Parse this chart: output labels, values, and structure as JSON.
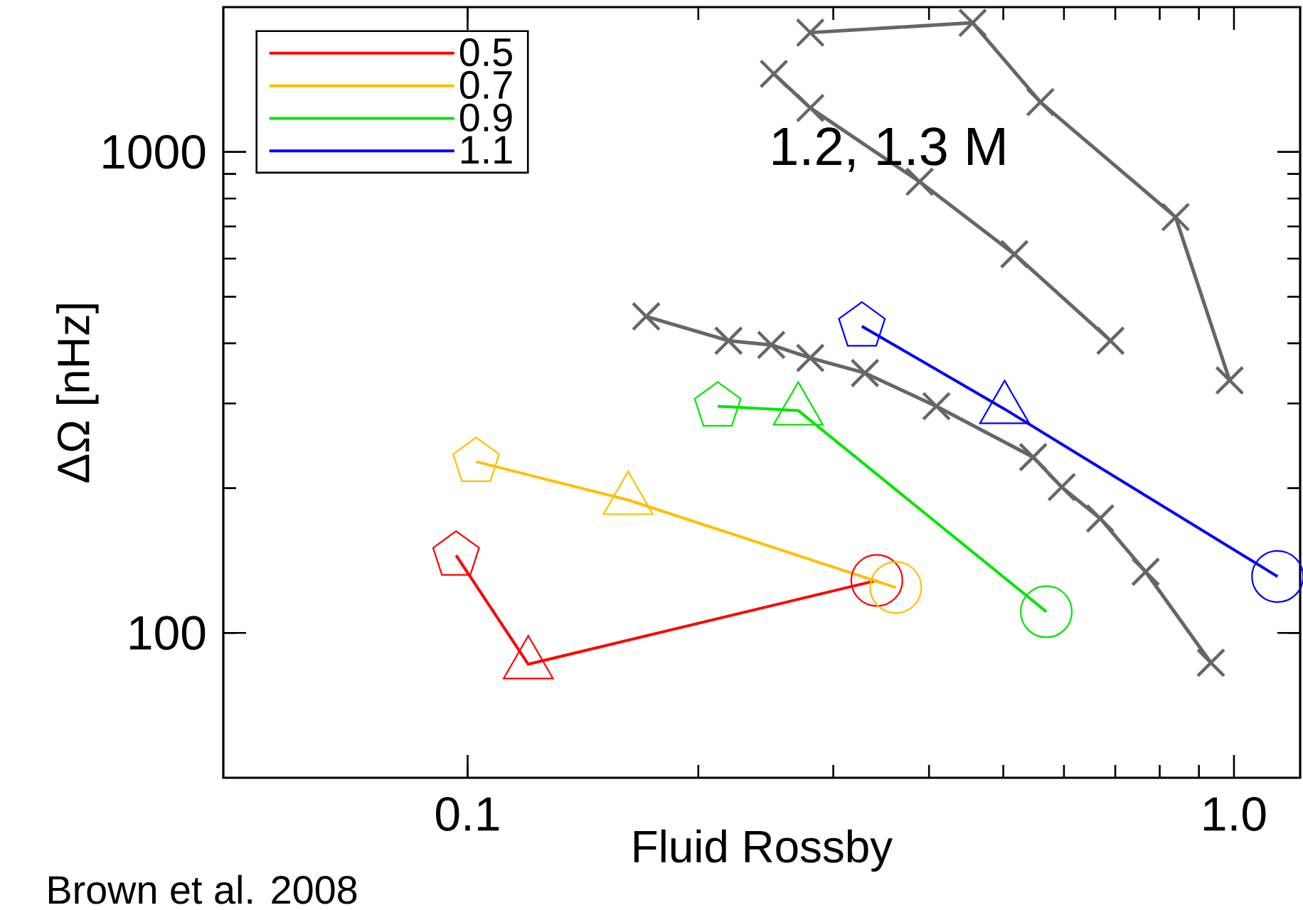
{
  "chart_data": {
    "type": "line",
    "xlabel": "Fluid Rossby",
    "ylabel": "ΔΩ [nHz]",
    "log": "xy",
    "xlim": [
      0.048,
      1.22
    ],
    "ylim": [
      50,
      2000
    ],
    "xticks": [
      0.1,
      {
        "value": 1,
        "label": "1.0"
      }
    ],
    "yticks": [
      100,
      1000
    ],
    "legend": "top left",
    "annotations": [
      "1.2, 1.3 M",
      "Brown et al. 2008"
    ],
    "series": [
      {
        "color": "#666666",
        "marker": "cross",
        "x": [
          0.28,
          0.456,
          0.559,
          0.839,
          0.987
        ],
        "values": [
          1770,
          1855,
          1269,
          732,
          335
        ]
      },
      {
        "color": "#666666",
        "marker": "cross",
        "x": [
          0.251,
          0.28,
          0.389,
          0.517,
          0.69
        ],
        "values": [
          1453,
          1234,
          867,
          613,
          405
        ]
      },
      {
        "color": "#666666",
        "marker": "cross",
        "x": [
          0.171,
          0.219,
          0.249,
          0.28,
          0.33,
          0.409,
          0.547,
          0.596,
          0.669,
          0.767,
          0.933
        ],
        "values": [
          455,
          405,
          397,
          373,
          347,
          296,
          232,
          201,
          173,
          134,
          86.7
        ]
      },
      {
        "name": "0.5",
        "color": "#ff0000",
        "marker": [
          "pentagon",
          "triangle",
          "circle"
        ],
        "x": [
          0.0966,
          0.12,
          0.342
        ],
        "values": [
          145,
          86.1,
          128.6
        ]
      },
      {
        "name": "0.7",
        "color": "#ffbf00",
        "marker": [
          "pentagon",
          "triangle",
          "circle"
        ],
        "x": [
          0.1026,
          0.162,
          0.362
        ],
        "values": [
          227,
          189,
          124.3
        ]
      },
      {
        "name": "0.9",
        "color": "#00e600",
        "marker": [
          "pentagon",
          "triangle",
          "circle"
        ],
        "x": [
          0.212,
          0.27,
          0.569
        ],
        "values": [
          296,
          290,
          110.7
        ]
      },
      {
        "name": "1.1",
        "color": "#0000ff",
        "marker": [
          "pentagon",
          "triangle",
          "circle"
        ],
        "x": [
          0.327,
          0.502,
          1.14
        ],
        "values": [
          434,
          292,
          131
        ]
      }
    ]
  }
}
